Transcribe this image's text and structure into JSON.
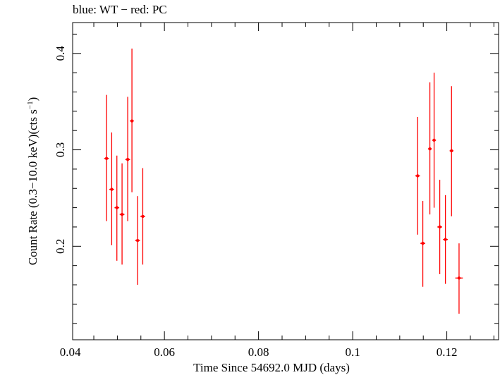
{
  "chart_data": {
    "type": "scatter",
    "title": "blue: WT − red: PC",
    "xlabel": "Time Since 54692.0 MJD (days)",
    "ylabel": "Count Rate (0.3−10.0 keV)(cts s",
    "ylabel_sup": "−1",
    "ylabel_end": ")",
    "xlim": [
      0.0405,
      0.131
    ],
    "ylim": [
      0.103,
      0.432
    ],
    "x_ticks_major": [
      0.04,
      0.06,
      0.08,
      0.1,
      0.12
    ],
    "x_tick_labels": [
      "0.04",
      "0.06",
      "0.08",
      "0.1",
      "0.12"
    ],
    "y_ticks_major": [
      0.2,
      0.3,
      0.4
    ],
    "y_tick_labels": [
      "0.2",
      "0.3",
      "0.4"
    ],
    "grid": false,
    "series": [
      {
        "color": "#ff0000",
        "points": [
          {
            "x": 0.0477,
            "y": 0.291,
            "xerr": 0.0005,
            "ylo": 0.226,
            "yhi": 0.357
          },
          {
            "x": 0.0488,
            "y": 0.259,
            "xerr": 0.0005,
            "ylo": 0.201,
            "yhi": 0.318
          },
          {
            "x": 0.0499,
            "y": 0.24,
            "xerr": 0.0005,
            "ylo": 0.185,
            "yhi": 0.294
          },
          {
            "x": 0.051,
            "y": 0.233,
            "xerr": 0.0005,
            "ylo": 0.181,
            "yhi": 0.286
          },
          {
            "x": 0.0522,
            "y": 0.29,
            "xerr": 0.0005,
            "ylo": 0.226,
            "yhi": 0.355
          },
          {
            "x": 0.0531,
            "y": 0.33,
            "xerr": 0.0004,
            "ylo": 0.256,
            "yhi": 0.405
          },
          {
            "x": 0.0543,
            "y": 0.206,
            "xerr": 0.0005,
            "ylo": 0.16,
            "yhi": 0.252
          },
          {
            "x": 0.0554,
            "y": 0.231,
            "xerr": 0.0005,
            "ylo": 0.181,
            "yhi": 0.281
          },
          {
            "x": 0.1138,
            "y": 0.273,
            "xerr": 0.0005,
            "ylo": 0.212,
            "yhi": 0.334
          },
          {
            "x": 0.1149,
            "y": 0.203,
            "xerr": 0.0005,
            "ylo": 0.158,
            "yhi": 0.247
          },
          {
            "x": 0.1164,
            "y": 0.301,
            "xerr": 0.0004,
            "ylo": 0.233,
            "yhi": 0.37
          },
          {
            "x": 0.1173,
            "y": 0.31,
            "xerr": 0.0004,
            "ylo": 0.24,
            "yhi": 0.38
          },
          {
            "x": 0.1185,
            "y": 0.22,
            "xerr": 0.0005,
            "ylo": 0.171,
            "yhi": 0.269
          },
          {
            "x": 0.1197,
            "y": 0.207,
            "xerr": 0.0005,
            "ylo": 0.161,
            "yhi": 0.253
          },
          {
            "x": 0.121,
            "y": 0.299,
            "xerr": 0.0004,
            "ylo": 0.231,
            "yhi": 0.366
          },
          {
            "x": 0.1226,
            "y": 0.167,
            "xerr": 0.0008,
            "ylo": 0.13,
            "yhi": 0.203
          }
        ]
      }
    ]
  }
}
